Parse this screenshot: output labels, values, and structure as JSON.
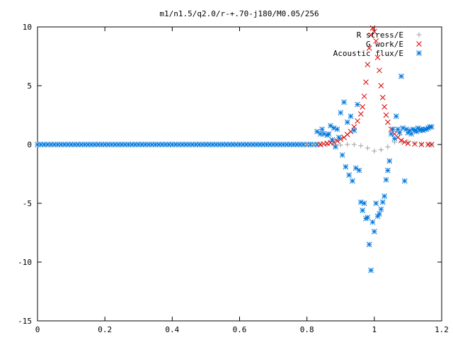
{
  "chart_data": {
    "type": "scatter",
    "title": "m1/n1.5/q2.0/r-+.70-j180/M0.05/256",
    "xlabel": "",
    "ylabel": "",
    "xlim": [
      0,
      1.2
    ],
    "ylim": [
      -15,
      10
    ],
    "x_ticks": [
      0,
      0.2,
      0.4,
      0.6,
      0.8,
      1,
      1.2
    ],
    "x_tick_labels": [
      "0",
      "0.2",
      "0.4",
      "0.6",
      "0.8",
      "1",
      "1.2"
    ],
    "y_ticks": [
      -15,
      -10,
      -5,
      0,
      5,
      10
    ],
    "y_tick_labels": [
      "-15",
      "-10",
      "-5",
      "0",
      "5",
      "10"
    ],
    "grid": false,
    "legend_position": "top-right",
    "series": [
      {
        "name": "R stress/E",
        "marker": "plus",
        "color": "#a0a0a0",
        "x": [
          0.8,
          0.82,
          0.84,
          0.86,
          0.88,
          0.9,
          0.92,
          0.94,
          0.96,
          0.98,
          1.0,
          1.02,
          1.04,
          1.06,
          1.08,
          1.1,
          1.12,
          1.14,
          1.16,
          1.17
        ],
        "y": [
          0,
          0,
          0,
          0,
          -0.05,
          -0.05,
          0,
          0,
          -0.1,
          -0.3,
          -0.55,
          -0.45,
          -0.2,
          0.2,
          0.25,
          0.2,
          0.1,
          0.05,
          0,
          0
        ]
      },
      {
        "name": "G work/E",
        "marker": "cross",
        "color": "#dd0000",
        "x": [
          0.84,
          0.85,
          0.86,
          0.87,
          0.88,
          0.89,
          0.9,
          0.91,
          0.92,
          0.93,
          0.94,
          0.95,
          0.96,
          0.965,
          0.97,
          0.975,
          0.98,
          0.985,
          0.99,
          0.995,
          1.0,
          1.005,
          1.01,
          1.015,
          1.02,
          1.025,
          1.03,
          1.035,
          1.04,
          1.05,
          1.06,
          1.07,
          1.08,
          1.09,
          1.1,
          1.12,
          1.14,
          1.16,
          1.17
        ],
        "y": [
          0,
          0.05,
          0.1,
          0.15,
          0.2,
          0.3,
          0.45,
          0.6,
          0.85,
          1.1,
          1.5,
          2.0,
          2.6,
          3.2,
          4.1,
          5.3,
          6.8,
          8.2,
          9.3,
          9.9,
          9.6,
          8.8,
          7.4,
          6.3,
          5.0,
          4.0,
          3.2,
          2.5,
          1.9,
          1.3,
          0.9,
          0.6,
          0.35,
          0.2,
          0.1,
          0.05,
          0,
          0,
          0
        ]
      },
      {
        "name": "Acoustic flux/E",
        "marker": "star",
        "color": "#0077dd",
        "x": [
          0.83,
          0.84,
          0.845,
          0.85,
          0.86,
          0.865,
          0.87,
          0.875,
          0.88,
          0.885,
          0.89,
          0.895,
          0.9,
          0.905,
          0.91,
          0.915,
          0.92,
          0.925,
          0.93,
          0.935,
          0.94,
          0.945,
          0.95,
          0.955,
          0.96,
          0.965,
          0.97,
          0.975,
          0.98,
          0.985,
          0.99,
          0.995,
          1.0,
          1.005,
          1.01,
          1.015,
          1.02,
          1.025,
          1.03,
          1.035,
          1.04,
          1.045,
          1.05,
          1.055,
          1.06,
          1.065,
          1.07,
          1.075,
          1.08,
          1.085,
          1.09,
          1.095,
          1.1,
          1.105,
          1.11,
          1.115,
          1.12,
          1.125,
          1.13,
          1.135,
          1.14,
          1.145,
          1.15,
          1.155,
          1.16,
          1.165,
          1.17
        ],
        "y": [
          1.1,
          0.9,
          1.3,
          0.9,
          0.8,
          0.9,
          1.6,
          0.4,
          1.4,
          -0.2,
          1.3,
          0.6,
          2.7,
          -0.9,
          3.6,
          -1.9,
          1.9,
          -2.6,
          2.4,
          -3.1,
          1.2,
          -2.0,
          3.4,
          -2.2,
          -4.9,
          -5.6,
          -5.0,
          -6.3,
          -6.2,
          -8.5,
          -10.7,
          -6.6,
          -7.4,
          -5.0,
          -6.1,
          -5.9,
          -5.5,
          -4.9,
          -4.4,
          -3.0,
          -2.2,
          -1.4,
          0.9,
          1.3,
          0.5,
          2.4,
          1.3,
          1.0,
          5.8,
          1.4,
          -3.1,
          1.3,
          1.0,
          1.2,
          0.9,
          1.3,
          1.2,
          1.1,
          1.4,
          1.2,
          1.3,
          1.2,
          1.3,
          1.3,
          1.4,
          1.5,
          1.5
        ]
      }
    ]
  },
  "baseline": {
    "series_index": 2,
    "x_start": 0,
    "x_end": 0.83,
    "step": 0.01,
    "y": 0
  }
}
